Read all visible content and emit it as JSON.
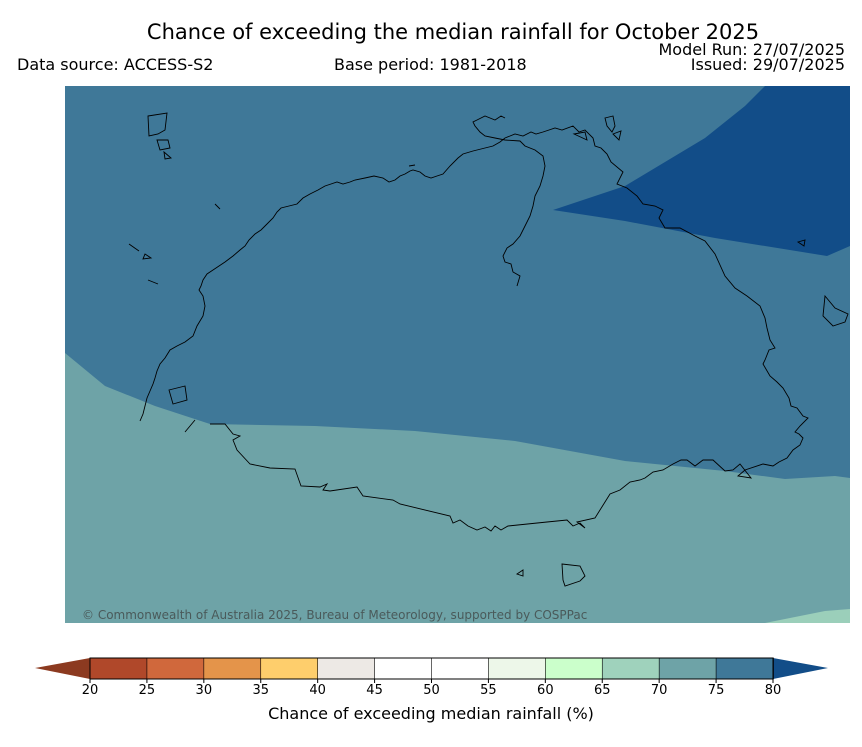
{
  "header": {
    "title": "Chance of exceeding the median rainfall for October 2025",
    "data_source": "Data source: ACCESS-S2",
    "base_period": "Base period: 1981-2018",
    "model_run": "Model Run: 27/07/2025",
    "issued": "Issued: 29/07/2025"
  },
  "map": {
    "copyright": "© Commonwealth of Australia 2025, Bureau of Meteorology, supported by COSPPac",
    "zones": [
      {
        "name": "75-80",
        "color": "#3f7898"
      },
      {
        "name": "80+",
        "color": "#124d88"
      },
      {
        "name": "70-75",
        "color": "#6ea3a7"
      },
      {
        "name": "65-70",
        "color": "#9bcfba"
      }
    ]
  },
  "colorbar": {
    "label": "Chance of exceeding median rainfall (%)",
    "ticks": [
      "20",
      "25",
      "30",
      "35",
      "40",
      "45",
      "50",
      "55",
      "60",
      "65",
      "70",
      "75",
      "80"
    ],
    "low_extend_color": "#8c3a20",
    "high_extend_color": "#124d88",
    "colors": [
      "#b0482a",
      "#d0683c",
      "#e4944a",
      "#fece6c",
      "#ede9e5",
      "#ffffff",
      "#ffffff",
      "#edf7e9",
      "#cbffcb",
      "#9fd2bc",
      "#6ea3a7",
      "#3f7898"
    ]
  }
}
